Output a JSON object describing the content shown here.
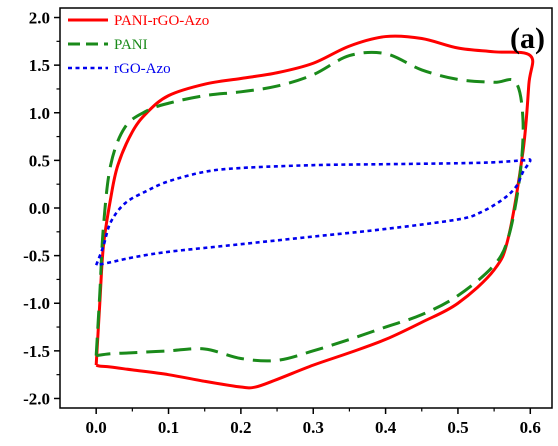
{
  "chart_data": {
    "type": "line",
    "title": "",
    "xlabel": "",
    "ylabel": "",
    "panel_label": "(a)",
    "xlim": [
      -0.05,
      0.63
    ],
    "ylim": [
      -2.1,
      2.1
    ],
    "x_ticks": [
      "0.0",
      "0.1",
      "0.2",
      "0.3",
      "0.4",
      "0.5",
      "0.6"
    ],
    "y_ticks": [
      "-2.0",
      "-1.5",
      "-1.0",
      "-0.5",
      "0.0",
      "0.5",
      "1.0",
      "1.5",
      "2.0"
    ],
    "legend_position": "top-left",
    "series": [
      {
        "name": "PANI-rGO-Azo",
        "color": "#ff0000",
        "style": "solid",
        "x": [
          0.0,
          0.005,
          0.01,
          0.02,
          0.03,
          0.05,
          0.07,
          0.1,
          0.15,
          0.2,
          0.25,
          0.3,
          0.35,
          0.4,
          0.45,
          0.5,
          0.55,
          0.6,
          0.598,
          0.59,
          0.57,
          0.55,
          0.5,
          0.45,
          0.4,
          0.35,
          0.3,
          0.25,
          0.22,
          0.2,
          0.15,
          0.1,
          0.05,
          0.02,
          0.005,
          0.0
        ],
        "y": [
          -1.65,
          -1.0,
          -0.4,
          0.1,
          0.45,
          0.8,
          1.0,
          1.18,
          1.3,
          1.36,
          1.42,
          1.52,
          1.7,
          1.8,
          1.78,
          1.68,
          1.64,
          1.6,
          1.3,
          0.6,
          -0.3,
          -0.65,
          -1.0,
          -1.2,
          -1.38,
          -1.52,
          -1.65,
          -1.8,
          -1.88,
          -1.88,
          -1.82,
          -1.75,
          -1.7,
          -1.67,
          -1.66,
          -1.65
        ]
      },
      {
        "name": "PANI",
        "color": "#1a8a1a",
        "style": "dashed",
        "x": [
          0.0,
          0.005,
          0.01,
          0.02,
          0.04,
          0.07,
          0.1,
          0.15,
          0.2,
          0.25,
          0.3,
          0.35,
          0.4,
          0.45,
          0.5,
          0.55,
          0.58,
          0.59,
          0.585,
          0.57,
          0.55,
          0.5,
          0.45,
          0.4,
          0.35,
          0.3,
          0.25,
          0.2,
          0.15,
          0.1,
          0.05,
          0.02,
          0.0
        ],
        "y": [
          -1.55,
          -0.9,
          -0.2,
          0.45,
          0.85,
          1.02,
          1.1,
          1.18,
          1.22,
          1.28,
          1.4,
          1.6,
          1.62,
          1.45,
          1.35,
          1.32,
          1.32,
          0.9,
          0.3,
          -0.3,
          -0.6,
          -0.92,
          -1.12,
          -1.25,
          -1.38,
          -1.5,
          -1.6,
          -1.58,
          -1.48,
          -1.5,
          -1.52,
          -1.53,
          -1.55
        ]
      },
      {
        "name": "rGO-Azo",
        "color": "#0000ee",
        "style": "dotted",
        "x": [
          0.0,
          0.01,
          0.02,
          0.04,
          0.07,
          0.1,
          0.15,
          0.2,
          0.3,
          0.4,
          0.5,
          0.55,
          0.59,
          0.6,
          0.59,
          0.58,
          0.56,
          0.53,
          0.5,
          0.4,
          0.3,
          0.2,
          0.1,
          0.05,
          0.02,
          0.0
        ],
        "y": [
          -0.6,
          -0.4,
          -0.15,
          0.05,
          0.18,
          0.28,
          0.38,
          0.42,
          0.45,
          0.46,
          0.47,
          0.48,
          0.5,
          0.5,
          0.38,
          0.22,
          0.08,
          -0.05,
          -0.12,
          -0.22,
          -0.3,
          -0.38,
          -0.46,
          -0.52,
          -0.57,
          -0.6
        ]
      }
    ]
  }
}
